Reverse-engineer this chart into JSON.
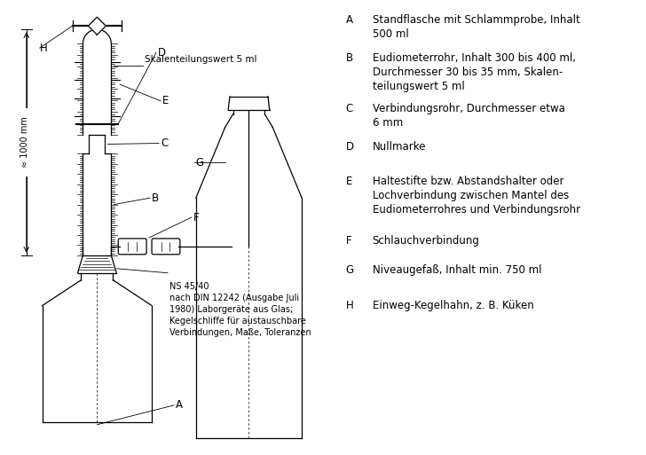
{
  "background_color": "#ffffff",
  "legend_items": [
    {
      "label": "A",
      "text": "Standflasche mit Schlammprobe, Inhalt\n500 ml"
    },
    {
      "label": "B",
      "text": "Eudiometerrohr, Inhalt 300 bis 400 ml,\nDurchmesser 30 bis 35 mm, Skalen-\nteilungswert 5 ml"
    },
    {
      "label": "C",
      "text": "Verbindungsrohr, Durchmesser etwa\n6 mm"
    },
    {
      "label": "D",
      "text": "Nullmarke"
    },
    {
      "label": "E",
      "text": "Haltestifte bzw. Abstandshalter oder\nLochverbindung zwischen Mantel des\nEudiometerrohres und Verbindungsrohr"
    },
    {
      "label": "F",
      "text": "Schlauchverbindung"
    },
    {
      "label": "G",
      "text": "Niveaugefaß, Inhalt min. 750 ml"
    },
    {
      "label": "H",
      "text": "Einweg-Kegelhahn, z. B. Küken"
    }
  ],
  "annotation_ns": "NS 45/40\nnach DIN 12242 (Ausgabe Juli\n1980) Laborgeräte aus Glas;\nKegelschliffe für austauschbare\nVerbindungen, Maße, Toleranzen",
  "annotation_scale": "Skalenteilungswert 5 ml",
  "annotation_height": "≈ 1000 mm",
  "font_size_legend": 8.5,
  "font_size_label": 8.5
}
